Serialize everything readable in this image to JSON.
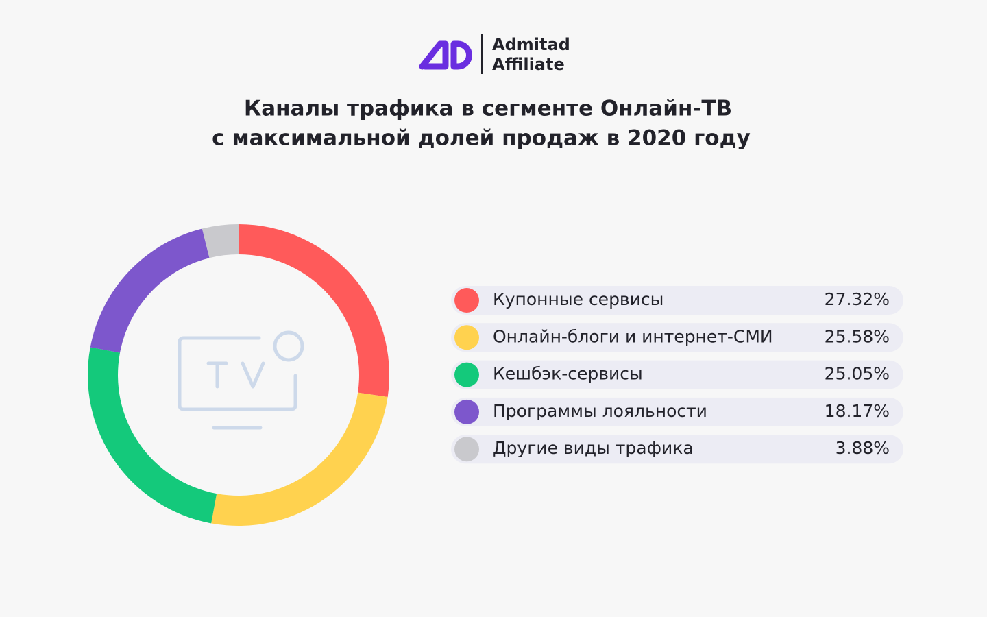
{
  "logo": {
    "line1": "Admitad",
    "line2": "Affiliate"
  },
  "chart_data": {
    "type": "pie",
    "donut": true,
    "title": "Каналы трафика в сегменте Онлайн-ТВ",
    "subtitle": "с максимальной долей продаж в 2020 году",
    "categories": [
      "Купонные сервисы",
      "Онлайн-блоги и интернет-СМИ",
      "Кешбэк-сервисы",
      "Программы лояльности",
      "Другие виды трафика"
    ],
    "values": [
      27.32,
      25.58,
      25.05,
      18.17,
      3.88
    ],
    "value_labels": [
      "27.32%",
      "25.58%",
      "25.05%",
      "18.17%",
      "3.88%"
    ],
    "colors": [
      "#ff5a5a",
      "#ffd24f",
      "#14c97b",
      "#7d57cc",
      "#c9c9cd"
    ]
  }
}
